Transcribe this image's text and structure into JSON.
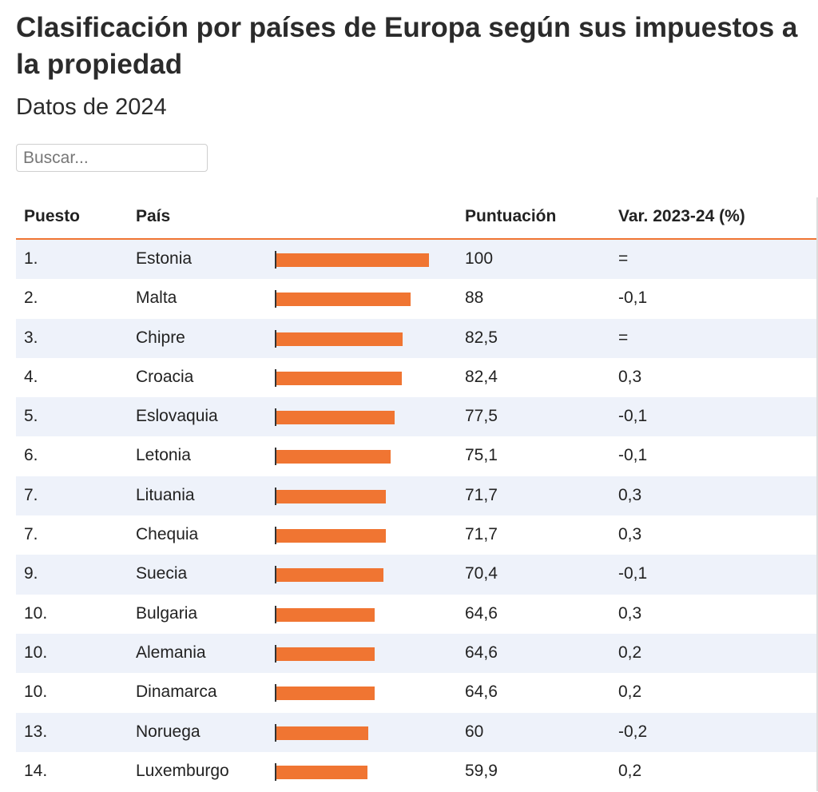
{
  "title": "Clasificación por países de Europa según sus impuestos a la propiedad",
  "subtitle": "Datos de 2024",
  "search": {
    "placeholder": "Buscar..."
  },
  "table": {
    "columns": {
      "rank": "Puesto",
      "country": "País",
      "score": "Puntuación",
      "variation": "Var. 2023-24 (%)"
    },
    "max_score": 100,
    "accent_color": "#f07532",
    "rows": [
      {
        "rank": "1.",
        "country": "Estonia",
        "score_label": "100",
        "score": 100,
        "variation": "="
      },
      {
        "rank": "2.",
        "country": "Malta",
        "score_label": "88",
        "score": 88,
        "variation": "-0,1"
      },
      {
        "rank": "3.",
        "country": "Chipre",
        "score_label": "82,5",
        "score": 82.5,
        "variation": "="
      },
      {
        "rank": "4.",
        "country": "Croacia",
        "score_label": "82,4",
        "score": 82.4,
        "variation": "0,3"
      },
      {
        "rank": "5.",
        "country": "Eslovaquia",
        "score_label": "77,5",
        "score": 77.5,
        "variation": "-0,1"
      },
      {
        "rank": "6.",
        "country": "Letonia",
        "score_label": "75,1",
        "score": 75.1,
        "variation": "-0,1"
      },
      {
        "rank": "7.",
        "country": "Lituania",
        "score_label": "71,7",
        "score": 71.7,
        "variation": "0,3"
      },
      {
        "rank": "7.",
        "country": "Chequia",
        "score_label": "71,7",
        "score": 71.7,
        "variation": "0,3"
      },
      {
        "rank": "9.",
        "country": "Suecia",
        "score_label": "70,4",
        "score": 70.4,
        "variation": "-0,1"
      },
      {
        "rank": "10.",
        "country": "Bulgaria",
        "score_label": "64,6",
        "score": 64.6,
        "variation": "0,3"
      },
      {
        "rank": "10.",
        "country": "Alemania",
        "score_label": "64,6",
        "score": 64.6,
        "variation": "0,2"
      },
      {
        "rank": "10.",
        "country": "Dinamarca",
        "score_label": "64,6",
        "score": 64.6,
        "variation": "0,2"
      },
      {
        "rank": "13.",
        "country": "Noruega",
        "score_label": "60",
        "score": 60,
        "variation": "-0,2"
      },
      {
        "rank": "14.",
        "country": "Luxemburgo",
        "score_label": "59,9",
        "score": 59.9,
        "variation": "0,2"
      }
    ]
  }
}
